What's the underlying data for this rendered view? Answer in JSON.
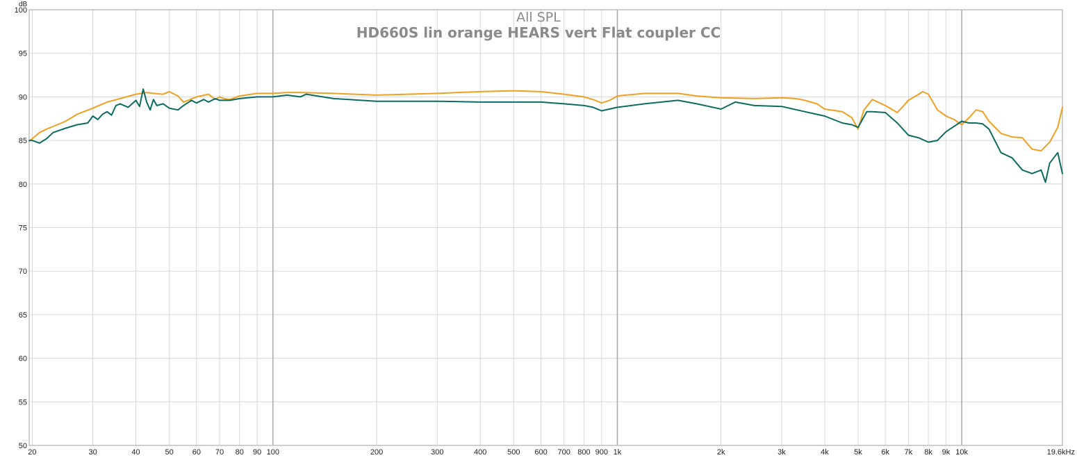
{
  "chart_data": {
    "type": "line",
    "title": "All SPL",
    "subtitle": "HD660S lin orange HEARS vert Flat coupler CC",
    "ylabel": "dB",
    "xlabel": "",
    "xscale": "log",
    "xlim": [
      19.6,
      19600
    ],
    "ylim": [
      50,
      100
    ],
    "grid": true,
    "y_ticks": [
      50,
      55,
      60,
      65,
      70,
      75,
      80,
      85,
      90,
      95,
      100
    ],
    "y_tick_labels": [
      "50",
      "55",
      "60",
      "65",
      "70",
      "75",
      "80",
      "85",
      "90",
      "95",
      "100"
    ],
    "x_ticks": [
      20,
      30,
      40,
      50,
      60,
      70,
      80,
      90,
      100,
      200,
      300,
      400,
      500,
      600,
      700,
      800,
      900,
      1000,
      2000,
      3000,
      4000,
      5000,
      6000,
      7000,
      8000,
      9000,
      10000,
      19600
    ],
    "x_tick_labels": [
      "20",
      "30",
      "40",
      "50",
      "60",
      "70",
      "80",
      "90",
      "100",
      "200",
      "300",
      "400",
      "500",
      "600",
      "700",
      "800",
      "900",
      "1k",
      "2k",
      "3k",
      "4k",
      "5k",
      "6k",
      "7k",
      "8k",
      "9k",
      "10k",
      "19.6kHz"
    ],
    "major_x_ticks": [
      100,
      1000,
      10000
    ],
    "series": [
      {
        "color": "#f0a020",
        "x": [
          19.6,
          20,
          21,
          22,
          23,
          25,
          27,
          30,
          33,
          36,
          40,
          43,
          45,
          48,
          50,
          53,
          55,
          60,
          65,
          68,
          70,
          72,
          75,
          80,
          90,
          100,
          110,
          120,
          150,
          200,
          300,
          400,
          500,
          600,
          700,
          800,
          850,
          900,
          950,
          1000,
          1200,
          1500,
          1700,
          2000,
          2500,
          3000,
          3300,
          3500,
          3800,
          4000,
          4500,
          4800,
          5000,
          5200,
          5500,
          6000,
          6500,
          7000,
          7500,
          7700,
          8000,
          8500,
          9000,
          9500,
          10000,
          10500,
          11000,
          11500,
          12000,
          13000,
          14000,
          15000,
          16000,
          17000,
          18000,
          19000,
          19600
        ],
        "y": [
          84.9,
          85.2,
          85.9,
          86.3,
          86.6,
          87.2,
          88.0,
          88.7,
          89.4,
          89.8,
          90.3,
          90.5,
          90.4,
          90.3,
          90.6,
          90.1,
          89.4,
          90.0,
          90.3,
          89.7,
          90.0,
          89.8,
          89.7,
          90.1,
          90.4,
          90.4,
          90.5,
          90.5,
          90.4,
          90.2,
          90.4,
          90.6,
          90.7,
          90.6,
          90.3,
          90.0,
          89.7,
          89.3,
          89.6,
          90.1,
          90.4,
          90.4,
          90.1,
          89.9,
          89.8,
          89.9,
          89.8,
          89.6,
          89.2,
          88.6,
          88.3,
          87.6,
          86.3,
          88.5,
          89.7,
          89.0,
          88.2,
          89.6,
          90.3,
          90.6,
          90.3,
          88.5,
          87.8,
          87.4,
          86.8,
          87.6,
          88.5,
          88.3,
          87.2,
          85.8,
          85.4,
          85.3,
          84.0,
          83.8,
          84.8,
          86.5,
          88.8
        ]
      },
      {
        "color": "#0b6b63",
        "x": [
          19.6,
          20,
          21,
          22,
          23,
          25,
          27,
          29,
          30,
          31,
          32,
          33,
          34,
          35,
          36,
          38,
          40,
          41,
          42,
          43,
          44,
          45,
          46,
          48,
          50,
          53,
          55,
          58,
          60,
          63,
          65,
          68,
          70,
          75,
          80,
          90,
          100,
          110,
          120,
          125,
          150,
          200,
          300,
          400,
          500,
          600,
          700,
          800,
          850,
          900,
          1000,
          1200,
          1500,
          1700,
          2000,
          2200,
          2500,
          3000,
          3500,
          4000,
          4500,
          4800,
          5000,
          5300,
          5500,
          6000,
          6500,
          7000,
          7500,
          8000,
          8500,
          9000,
          10000,
          10500,
          11000,
          11500,
          12000,
          13000,
          14000,
          15000,
          16000,
          17000,
          17500,
          18000,
          19000,
          19600
        ],
        "y": [
          85.0,
          85.0,
          84.7,
          85.2,
          85.9,
          86.4,
          86.8,
          87.0,
          87.8,
          87.4,
          88.0,
          88.3,
          87.9,
          89.0,
          89.2,
          88.8,
          89.6,
          88.9,
          90.9,
          89.4,
          88.5,
          89.7,
          89.0,
          89.2,
          88.7,
          88.5,
          89.0,
          89.6,
          89.3,
          89.7,
          89.4,
          89.8,
          89.6,
          89.6,
          89.8,
          90.0,
          90.0,
          90.2,
          90.0,
          90.3,
          89.8,
          89.5,
          89.5,
          89.4,
          89.4,
          89.4,
          89.2,
          89.0,
          88.8,
          88.4,
          88.8,
          89.2,
          89.6,
          89.2,
          88.6,
          89.4,
          89.0,
          88.9,
          88.3,
          87.8,
          87.0,
          86.8,
          86.5,
          88.3,
          88.3,
          88.2,
          87.0,
          85.6,
          85.3,
          84.8,
          85.0,
          86.0,
          87.2,
          87.0,
          87.0,
          86.9,
          86.3,
          83.6,
          83.0,
          81.6,
          81.2,
          81.6,
          80.2,
          82.4,
          83.6,
          81.2
        ]
      }
    ]
  }
}
